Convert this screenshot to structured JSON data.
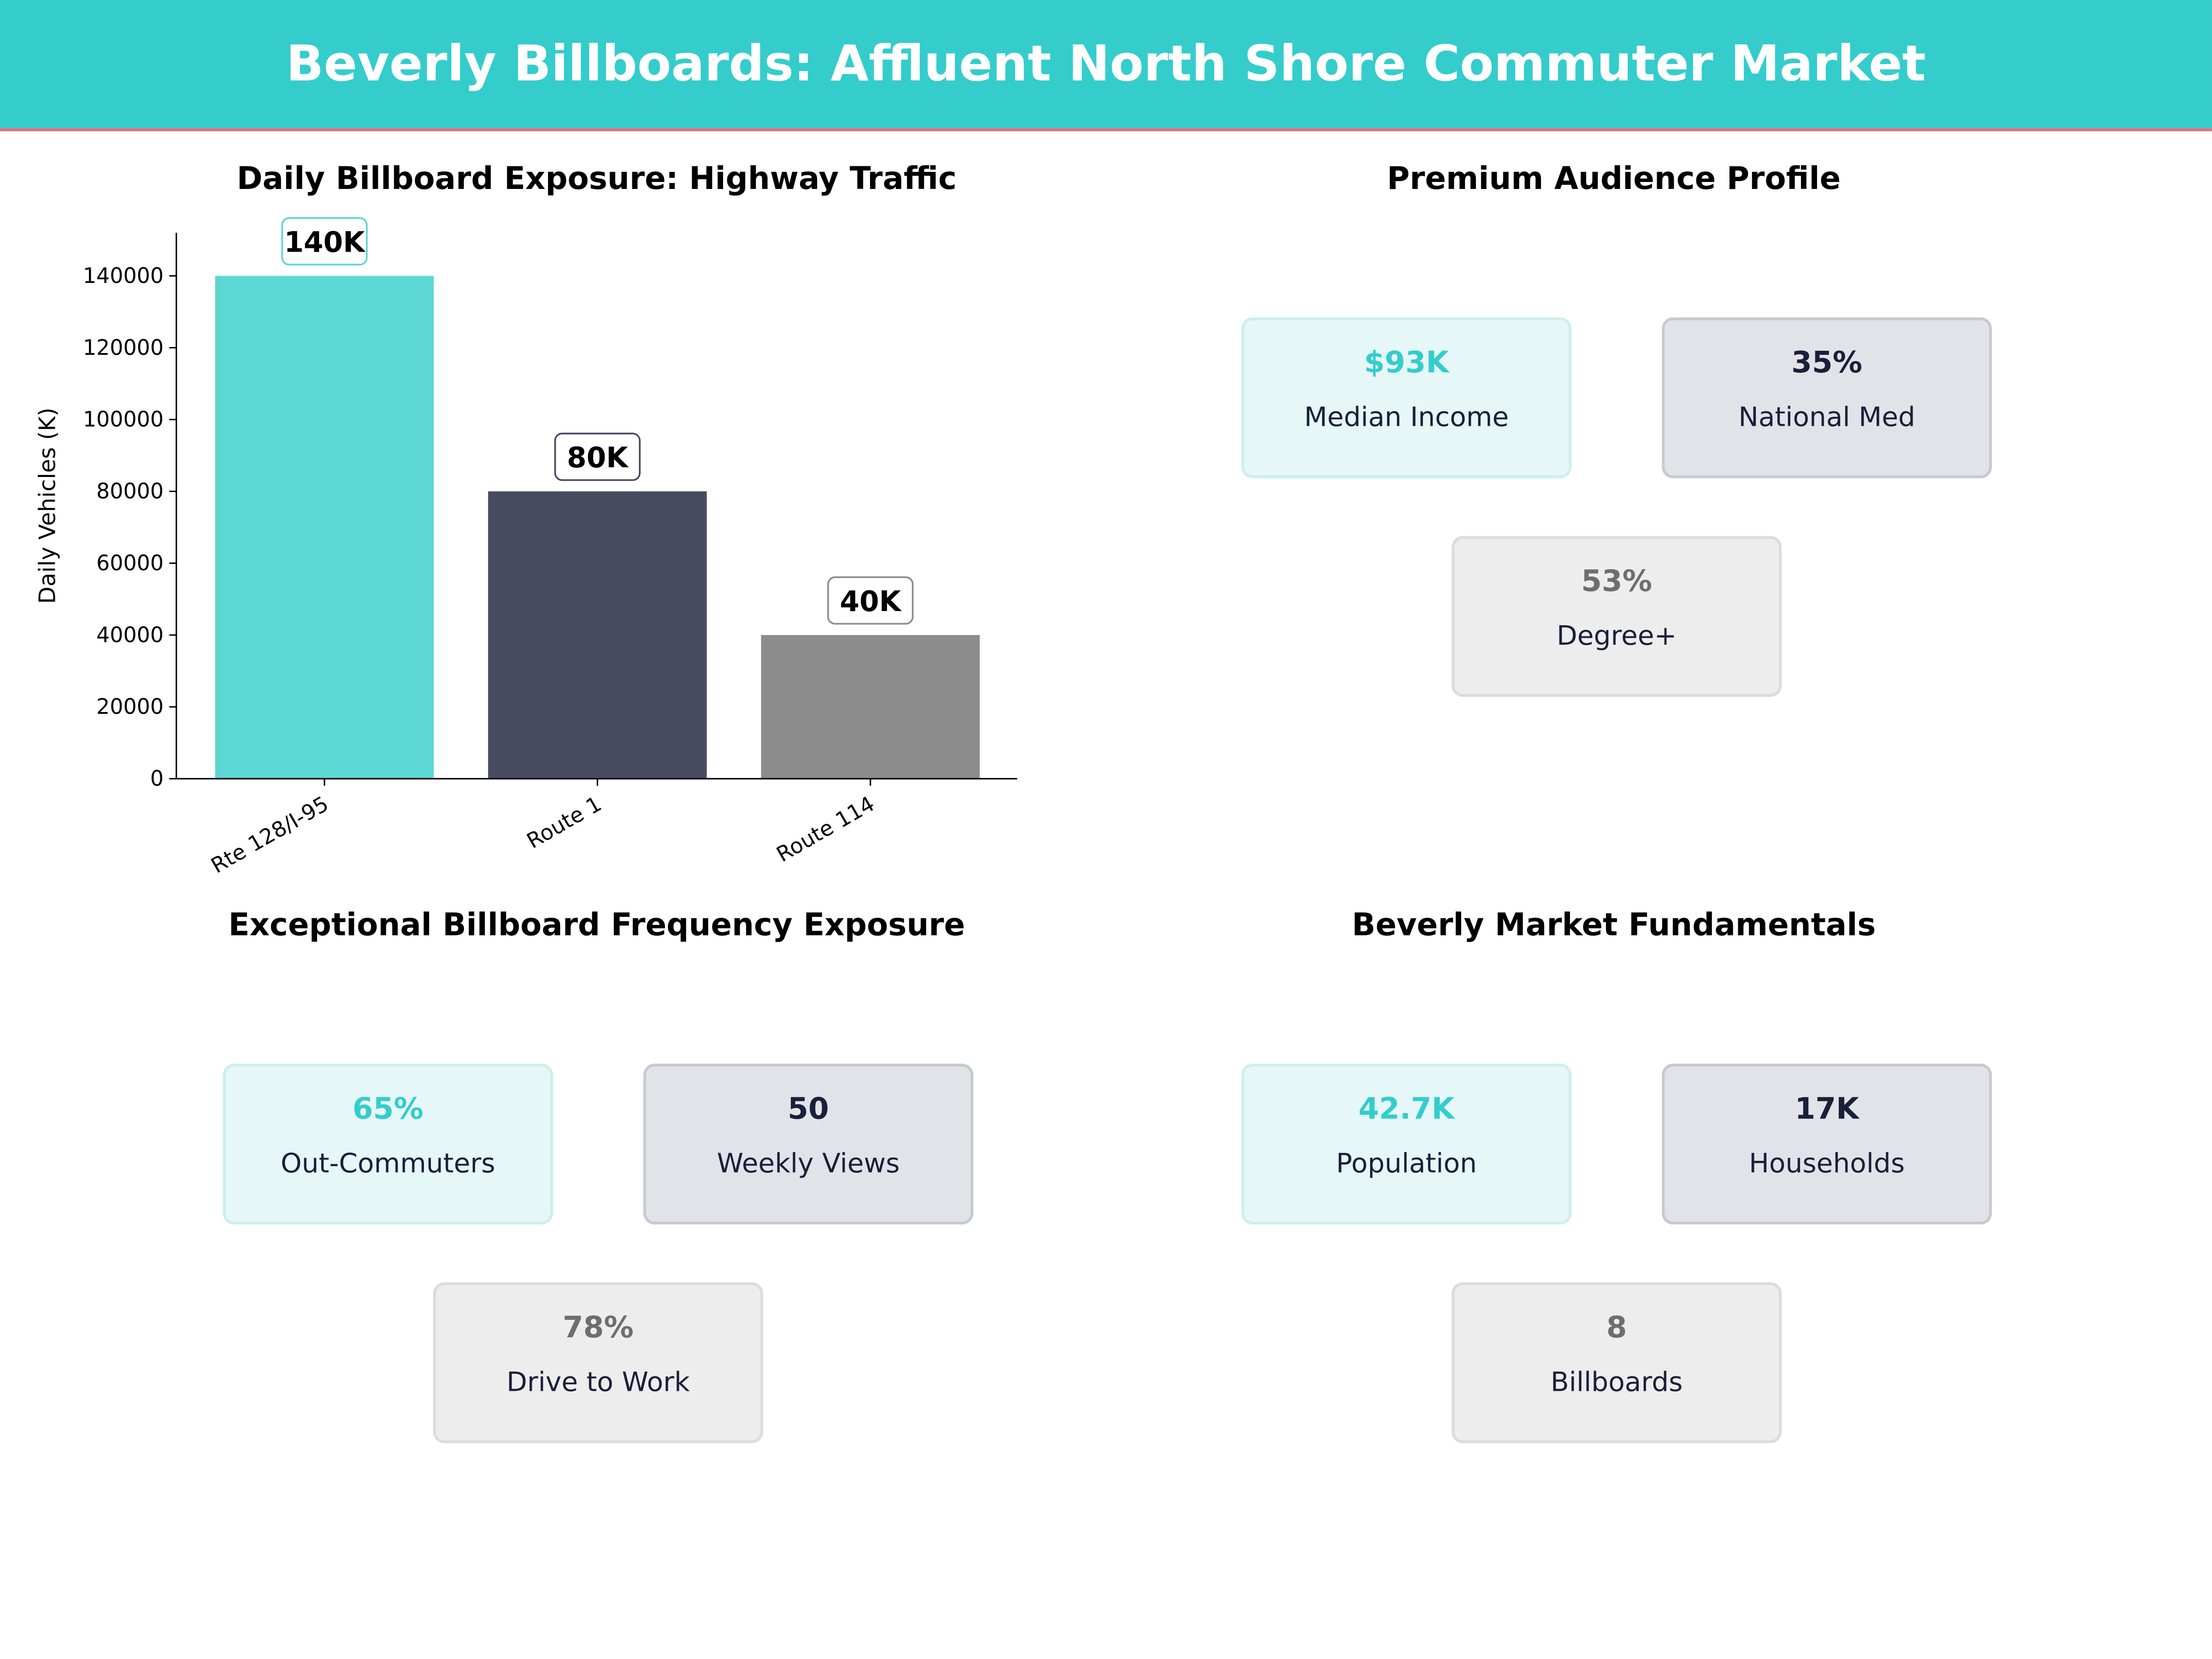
{
  "header": {
    "title": "Beverly Billboards: Affluent North Shore Commuter Market"
  },
  "colors": {
    "header_bg": "#35CCCC",
    "header_rule": "#F06B7A",
    "teal": "#5DD7D3",
    "navy": "#464B60",
    "gray": "#8C8C8C"
  },
  "chart_data": {
    "type": "bar",
    "title": "Daily Billboard Exposure: Highway Traffic",
    "xlabel": "",
    "ylabel": "Daily Vehicles (K)",
    "categories": [
      "Rte 128/I-95",
      "Route 1",
      "Route 114"
    ],
    "values": [
      140000,
      80000,
      40000
    ],
    "data_labels": [
      "140K",
      "80K",
      "40K"
    ],
    "bar_colors": [
      "#5DD7D3",
      "#464B60",
      "#8C8C8C"
    ],
    "yticks": [
      0,
      20000,
      40000,
      60000,
      80000,
      100000,
      120000,
      140000
    ],
    "ylim": [
      0,
      152000
    ],
    "grid": false
  },
  "panels": [
    {
      "title": "Premium Audience Profile",
      "cards": [
        {
          "value": "$93K",
          "label": "Median Income"
        },
        {
          "value": "35%",
          "label": "National Med"
        },
        {
          "value": "53%",
          "label": "Degree+"
        }
      ]
    },
    {
      "title": "Exceptional Billboard Frequency Exposure",
      "cards": [
        {
          "value": "65%",
          "label": "Out-Commuters"
        },
        {
          "value": "50",
          "label": "Weekly Views"
        },
        {
          "value": "78%",
          "label": "Drive to Work"
        }
      ]
    },
    {
      "title": "Beverly Market Fundamentals",
      "cards": [
        {
          "value": "42.7K",
          "label": "Population"
        },
        {
          "value": "17K",
          "label": "Households"
        },
        {
          "value": "8",
          "label": "Billboards"
        }
      ]
    }
  ]
}
